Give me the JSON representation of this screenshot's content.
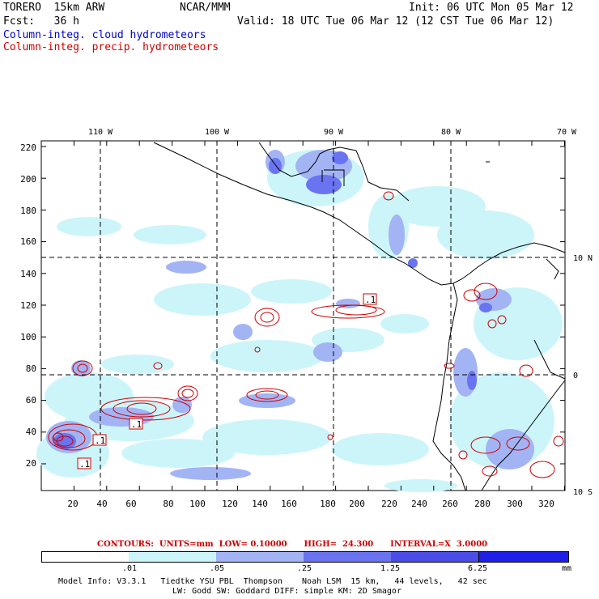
{
  "header": {
    "model": "TORERO  15km ARW",
    "org": "NCAR/MMM",
    "init": "Init: 06 UTC Mon 05 Mar 12",
    "fcst": "Fcst:   36 h",
    "valid": "Valid: 18 UTC Tue 06 Mar 12 (12 CST Tue 06 Mar 12)",
    "legend_blue": "Column-integ. cloud hydrometeors",
    "legend_red": "Column-integ. precip. hydrometeors"
  },
  "colors": {
    "cloud_light": "#ccf5fa",
    "cloud_mid": "#a3b4f5",
    "cloud_dark": "#6a73f0",
    "cloud_darker": "#4a4de8",
    "precip": "#cc0000",
    "coast": "#000000"
  },
  "map": {
    "x_axis": [
      "20",
      "40",
      "60",
      "80",
      "100",
      "120",
      "140",
      "160",
      "180",
      "200",
      "220",
      "240",
      "260",
      "280",
      "300",
      "320"
    ],
    "y_axis": [
      "220",
      "200",
      "180",
      "160",
      "140",
      "120",
      "100",
      "80",
      "60",
      "40",
      "20"
    ],
    "lon_labels": [
      "110 W",
      "100 W",
      "90 W",
      "80 W",
      "70 W"
    ],
    "lat_labels": [
      "10 N",
      "0",
      "10 S"
    ],
    "contour_labels": [
      ".1",
      ".1",
      ".1",
      ".1"
    ]
  },
  "contours_info": "CONTOURS:  UNITS=mm  LOW= 0.10000      HIGH=  24.300      INTERVAL=X  3.0000",
  "colorbar": {
    "ticks": [
      ".01",
      ".05",
      ".25",
      "1.25",
      "6.25"
    ],
    "unit": "mm",
    "colors": [
      "#ffffff",
      "#ccf5fa",
      "#a3b4f5",
      "#6a73f0",
      "#4a4de8",
      "#1f1fe6"
    ]
  },
  "footer": {
    "line1": "Model Info: V3.3.1   Tiedtke YSU PBL  Thompson    Noah LSM  15 km,   44 levels,   42 sec",
    "line2": "LW: Godd SW: Goddard DIFF: simple KM: 2D Smagor"
  }
}
